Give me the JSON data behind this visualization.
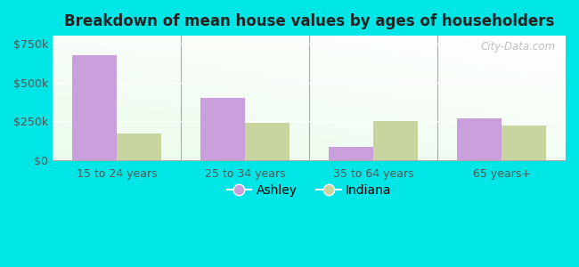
{
  "title": "Breakdown of mean house values by ages of householders",
  "categories": [
    "15 to 24 years",
    "25 to 34 years",
    "35 to 64 years",
    "65 years+"
  ],
  "ashley_values": [
    675000,
    400000,
    85000,
    270000
  ],
  "indiana_values": [
    175000,
    240000,
    255000,
    225000
  ],
  "ashley_color": "#c9a0dc",
  "indiana_color": "#c8d5a0",
  "background_color": "#00e5e5",
  "ylim": [
    0,
    800000
  ],
  "yticks": [
    0,
    250000,
    500000,
    750000
  ],
  "ytick_labels": [
    "$0",
    "$250k",
    "$500k",
    "$750k"
  ],
  "bar_width": 0.35,
  "legend_ashley": "Ashley",
  "legend_indiana": "Indiana",
  "watermark": "City-Data.com",
  "title_fontsize": 12,
  "tick_fontsize": 9,
  "legend_fontsize": 10
}
